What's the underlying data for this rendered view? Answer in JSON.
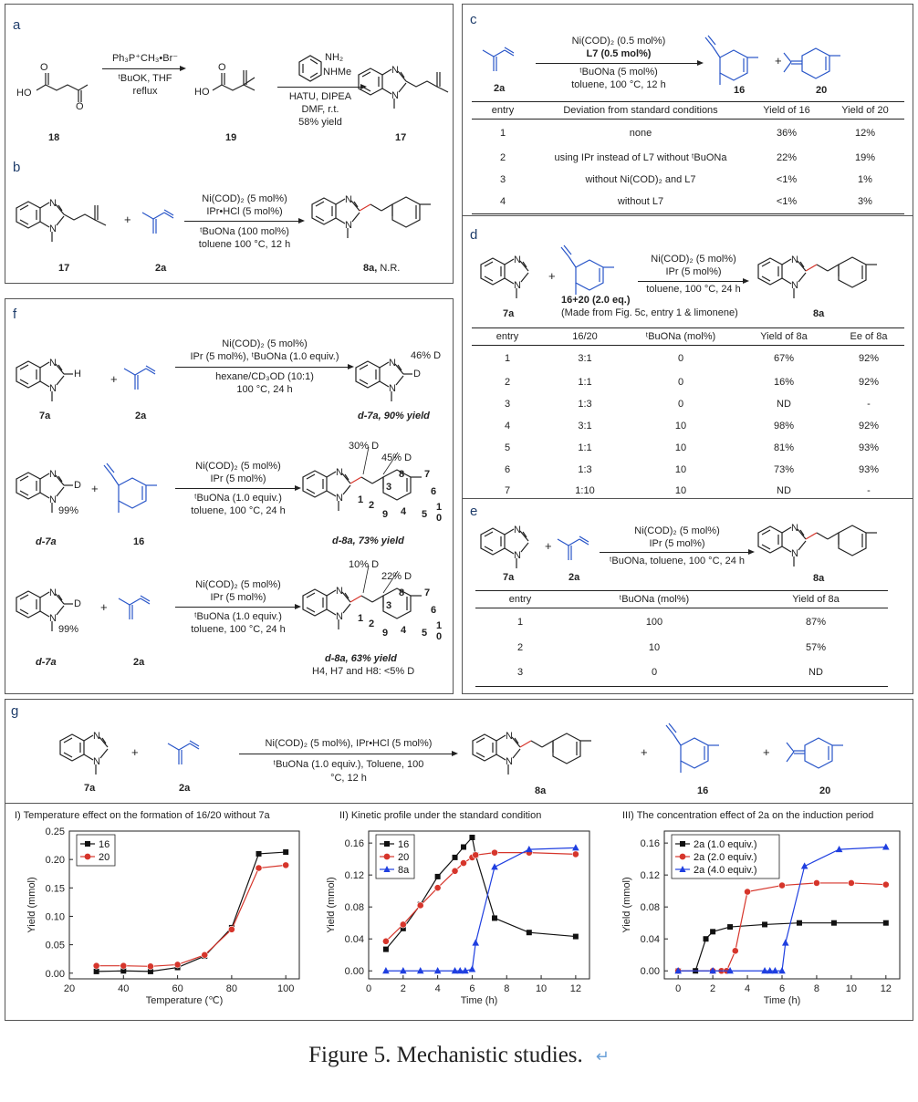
{
  "panel_a": {
    "label": "a",
    "reagent1": "Ph₃P⁺CH₃•Br⁻",
    "reagent2": "ᵗBuOK, THF",
    "reagent3": "reflux",
    "reagent4": "HATU, DIPEA",
    "reagent5": "DMF, r.t.",
    "reagent6": "58% yield",
    "nh2": "NH₂",
    "nhme": "NHMe",
    "c18": "18",
    "c19": "19",
    "c17": "17"
  },
  "panel_b": {
    "label": "b",
    "cond1": "Ni(COD)₂ (5 mol%)",
    "cond2": "IPr•HCl (5 mol%)",
    "cond3": "ᵗBuONa (100 mol%)",
    "cond4": "toluene 100 °C, 12 h",
    "c17": "17",
    "c2a": "2a",
    "c8a": "8a,",
    "nr": "N.R."
  },
  "panel_c": {
    "label": "c",
    "cond1": "Ni(COD)₂ (0.5 mol%)",
    "cond2": "L7 (0.5 mol%)",
    "cond3": "ᵗBuONa (5 mol%)",
    "cond4": "toluene, 100 °C, 12 h",
    "c2a": "2a",
    "c16": "16",
    "c20": "20",
    "headers": [
      "entry",
      "Deviation from standard conditions",
      "Yield of 16",
      "Yield of 20"
    ],
    "rows": [
      [
        "1",
        "none",
        "36%",
        "12%"
      ],
      [
        "2",
        "using IPr instead of L7 without ᵗBuONa",
        "22%",
        "19%"
      ],
      [
        "3",
        "without Ni(COD)₂ and L7",
        "<1%",
        "1%"
      ],
      [
        "4",
        "without  L7",
        "<1%",
        "3%"
      ]
    ]
  },
  "panel_d": {
    "label": "d",
    "cond1": "Ni(COD)₂ (5 mol%)",
    "cond2": "IPr (5 mol%)",
    "cond3": "toluene, 100 °C, 24 h",
    "c7a": "7a",
    "c8a": "8a",
    "mix": "16+20 (2.0 eq.)",
    "note": "(Made from Fig. 5c, entry 1 & limonene)",
    "headers": [
      "entry",
      "16/20",
      "ᵗBuONa (mol%)",
      "Yield of 8a",
      "Ee of 8a"
    ],
    "rows": [
      [
        "1",
        "3:1",
        "0",
        "67%",
        "92%"
      ],
      [
        "2",
        "1:1",
        "0",
        "16%",
        "92%"
      ],
      [
        "3",
        "1:3",
        "0",
        "ND",
        "-"
      ],
      [
        "4",
        "3:1",
        "10",
        "98%",
        "92%"
      ],
      [
        "5",
        "1:1",
        "10",
        "81%",
        "93%"
      ],
      [
        "6",
        "1:3",
        "10",
        "73%",
        "93%"
      ],
      [
        "7",
        "1:10",
        "10",
        "ND",
        "-"
      ]
    ]
  },
  "panel_e": {
    "label": "e",
    "cond1": "Ni(COD)₂ (5 mol%)",
    "cond2": "IPr (5 mol%)",
    "cond3": "ᵗBuONa, toluene, 100 °C, 24 h",
    "c7a": "7a",
    "c2a": "2a",
    "c8a": "8a",
    "headers": [
      "entry",
      "ᵗBuONa (mol%)",
      "Yield of 8a"
    ],
    "rows": [
      [
        "1",
        "100",
        "87%"
      ],
      [
        "2",
        "10",
        "57%"
      ],
      [
        "3",
        "0",
        "ND"
      ]
    ]
  },
  "panel_f": {
    "label": "f",
    "r1": {
      "cond1": "Ni(COD)₂ (5 mol%)",
      "cond2": "IPr (5 mol%), ᵗBuONa (1.0 equiv.)",
      "cond3": "hexane/CD₃OD (10:1)",
      "cond4": "100 °C, 24 h",
      "c7a": "7a",
      "c2a": "2a",
      "prod": "d-7a, 90% yield",
      "dpct": "46% D"
    },
    "r2": {
      "cond1": "Ni(COD)₂ (5 mol%)",
      "cond2": "IPr (5 mol%)",
      "cond3": "ᵗBuONa (1.0 equiv.)",
      "cond4": "toluene, 100 °C, 24 h",
      "sm": "d-7a",
      "c16": "16",
      "pct": "99%",
      "prod": "d-8a, 73% yield",
      "d1": "30% D",
      "d2": "45% D"
    },
    "r3": {
      "cond1": "Ni(COD)₂ (5 mol%)",
      "cond2": "IPr (5 mol%)",
      "cond3": "ᵗBuONa (1.0 equiv.)",
      "cond4": "toluene, 100 °C, 24 h",
      "sm": "d-7a",
      "c2a": "2a",
      "pct": "99%",
      "prod": "d-8a, 63% yield",
      "note": "H4, H7 and H8: <5% D",
      "d1": "10% D",
      "d2": "22% D"
    },
    "num": [
      "1",
      "2",
      "3",
      "4",
      "5",
      "6",
      "7",
      "8",
      "9",
      "0"
    ],
    "atom_d": "D"
  },
  "panel_g": {
    "label": "g",
    "cond1": "Ni(COD)₂ (5 mol%), IPr•HCl (5 mol%)",
    "cond2": "ᵗBuONa (1.0 equiv.), Toluene, 100",
    "cond3": "°C, 12 h",
    "c7a": "7a",
    "c2a": "2a",
    "c8a": "8a",
    "c16": "16",
    "c20": "20"
  },
  "atoms": {
    "N": "N",
    "H": "H",
    "D": "D",
    "O": "O",
    "HO": "HO",
    "plus": "+"
  },
  "caption": "Figure 5. Mechanistic studies.",
  "return_glyph": "↵",
  "chart_data": [
    {
      "type": "line",
      "title": "I) Temperature effect on the formation of 16/20 without 7a",
      "xlabel": "Temperature (℃)",
      "ylabel": "Yield (mmol)",
      "xlim": [
        20,
        105
      ],
      "ylim": [
        -0.01,
        0.25
      ],
      "xticks": [
        20,
        40,
        60,
        80,
        100
      ],
      "yticks": [
        0.0,
        0.05,
        0.1,
        0.15,
        0.2,
        0.25
      ],
      "legend": "top-left",
      "series": [
        {
          "name": "16",
          "color": "#111111",
          "marker": "square",
          "x": [
            30,
            40,
            50,
            60,
            70,
            80,
            90,
            100
          ],
          "y": [
            0.003,
            0.004,
            0.003,
            0.01,
            0.03,
            0.08,
            0.21,
            0.213
          ]
        },
        {
          "name": "20",
          "color": "#d6352b",
          "marker": "circle",
          "x": [
            30,
            40,
            50,
            60,
            70,
            80,
            90,
            100
          ],
          "y": [
            0.013,
            0.013,
            0.012,
            0.015,
            0.032,
            0.077,
            0.185,
            0.19
          ]
        }
      ]
    },
    {
      "type": "line",
      "title": "II) Kinetic profile under the standard condition",
      "xlabel": "Time (h)",
      "ylabel": "Yield (mmol)",
      "xlim": [
        0,
        12.8
      ],
      "ylim": [
        -0.01,
        0.175
      ],
      "xticks": [
        0,
        2,
        4,
        6,
        8,
        10,
        12
      ],
      "yticks": [
        0.0,
        0.04,
        0.08,
        0.12,
        0.16
      ],
      "legend": "top-left",
      "series": [
        {
          "name": "16",
          "color": "#111111",
          "marker": "square",
          "x": [
            1,
            2,
            3,
            4,
            5,
            5.5,
            6,
            6.2,
            7.3,
            9.3,
            12
          ],
          "y": [
            0.027,
            0.053,
            0.083,
            0.118,
            0.142,
            0.155,
            0.167,
            0.145,
            0.066,
            0.048,
            0.043
          ]
        },
        {
          "name": "20",
          "color": "#d6352b",
          "marker": "circle",
          "x": [
            1,
            2,
            3,
            4,
            5,
            5.5,
            6,
            6.2,
            7.3,
            9.3,
            12
          ],
          "y": [
            0.037,
            0.058,
            0.082,
            0.104,
            0.125,
            0.135,
            0.142,
            0.145,
            0.148,
            0.148,
            0.146
          ]
        },
        {
          "name": "8a",
          "color": "#1f3fe0",
          "marker": "triangle",
          "x": [
            1,
            2,
            3,
            4,
            5,
            5.3,
            5.6,
            6,
            6.2,
            7.3,
            9.3,
            12
          ],
          "y": [
            0,
            0,
            0,
            0,
            0,
            0,
            0,
            0.002,
            0.035,
            0.13,
            0.152,
            0.154
          ]
        }
      ]
    },
    {
      "type": "line",
      "title": "III) The concentration effect of 2a on the induction period",
      "xlabel": "Time (h)",
      "ylabel": "Yield (mmol)",
      "xlim": [
        -0.8,
        12.8
      ],
      "ylim": [
        -0.01,
        0.175
      ],
      "xticks": [
        0,
        2,
        4,
        6,
        8,
        10,
        12
      ],
      "yticks": [
        0.0,
        0.04,
        0.08,
        0.12,
        0.16
      ],
      "legend": "top-left",
      "series": [
        {
          "name": "2a (1.0 equiv.)",
          "color": "#111111",
          "marker": "square",
          "x": [
            0,
            1,
            1.6,
            2,
            3,
            5,
            7,
            9,
            12
          ],
          "y": [
            0,
            0,
            0.04,
            0.049,
            0.055,
            0.058,
            0.06,
            0.06,
            0.06
          ]
        },
        {
          "name": "2a (2.0 equiv.)",
          "color": "#d6352b",
          "marker": "circle",
          "x": [
            0,
            2,
            2.5,
            2.8,
            3.3,
            4,
            6,
            8,
            10,
            12
          ],
          "y": [
            0,
            0,
            0,
            0,
            0.025,
            0.099,
            0.107,
            0.11,
            0.11,
            0.108
          ]
        },
        {
          "name": "2a (4.0 equiv.)",
          "color": "#1f3fe0",
          "marker": "triangle",
          "x": [
            0,
            2,
            3,
            5,
            5.3,
            5.6,
            6,
            6.2,
            7.3,
            9.3,
            12
          ],
          "y": [
            0,
            0,
            0,
            0,
            0,
            0,
            0,
            0.035,
            0.131,
            0.152,
            0.155
          ]
        }
      ]
    }
  ]
}
